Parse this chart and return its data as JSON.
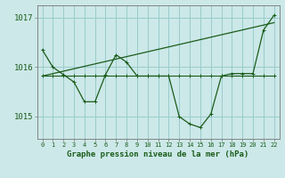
{
  "xlabel": "Graphe pression niveau de la mer (hPa)",
  "bg_color": "#cce8e8",
  "grid_color": "#99cccc",
  "line_color": "#1a5c1a",
  "ylim": [
    1014.55,
    1017.25
  ],
  "yticks": [
    1015,
    1016,
    1017
  ],
  "xlim": [
    -0.5,
    22.5
  ],
  "s1": [
    1016.35,
    1016.0,
    1015.85,
    1015.7,
    1015.3,
    1015.3,
    1015.85,
    1016.25,
    1016.1,
    1015.82,
    1015.82,
    1015.82,
    1015.82,
    1015.0,
    1014.85,
    1014.78,
    1015.05,
    1015.82,
    1015.87,
    1015.87,
    1015.87,
    1016.75,
    1017.05
  ],
  "s2": [
    1015.82,
    1015.82,
    1015.82,
    1015.82,
    1015.82,
    1015.82,
    1015.82,
    1015.82,
    1015.82,
    1015.82,
    1015.82,
    1015.82,
    1015.82,
    1015.82,
    1015.82,
    1015.82,
    1015.82,
    1015.82,
    1015.82,
    1015.82,
    1015.82,
    1015.82,
    1015.82
  ],
  "trend_x": [
    0,
    22
  ],
  "trend_y": [
    1015.82,
    1016.9
  ]
}
